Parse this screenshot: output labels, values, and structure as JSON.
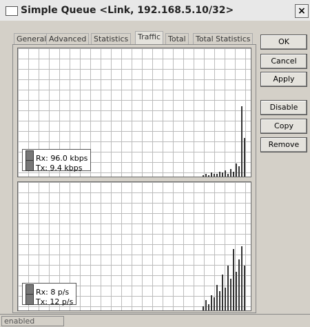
{
  "window": {
    "title": "Simple Queue <Link, 192.168.5.10/32>"
  },
  "tabs": [
    "General",
    "Advanced",
    "Statistics",
    "Traffic",
    "Total",
    "Total Statistics"
  ],
  "buttons": [
    "OK",
    "Cancel",
    "Apply",
    "Disable",
    "Copy",
    "Remove"
  ],
  "graphs": [
    {
      "legend": [
        "Rx: 96.0 kbps",
        "Tx: 9.4 kbps"
      ],
      "ylim": [
        0,
        100
      ],
      "bars": [
        1,
        2,
        1,
        3,
        2,
        2,
        4,
        3,
        5,
        2,
        6,
        4,
        10,
        8,
        55,
        30
      ]
    },
    {
      "legend": [
        "Rx: 8 p/s",
        "Tx: 12 p/s"
      ],
      "ylim": [
        0,
        100
      ],
      "bars": [
        3,
        8,
        5,
        12,
        10,
        20,
        15,
        28,
        18,
        35,
        25,
        48,
        30,
        40,
        50,
        35
      ]
    }
  ],
  "status": "enabled"
}
